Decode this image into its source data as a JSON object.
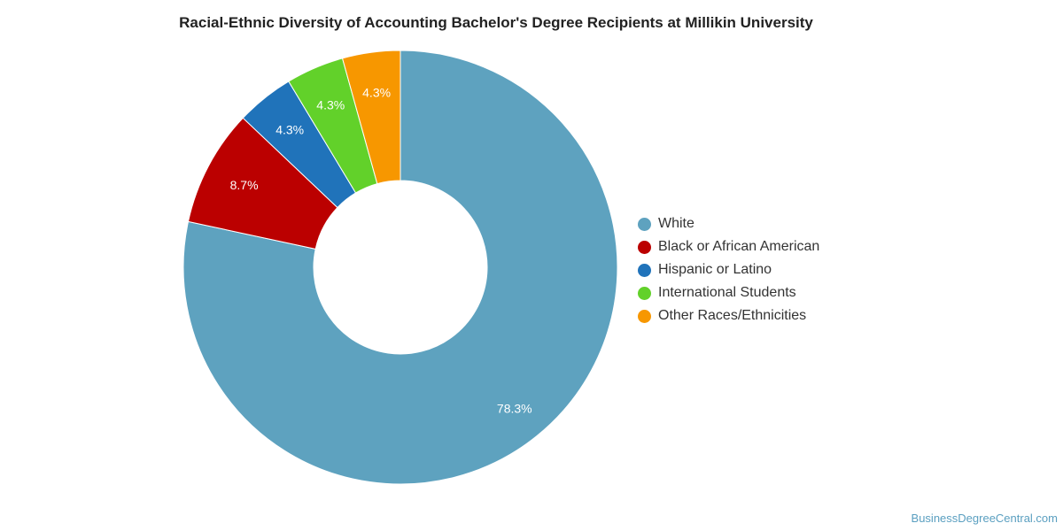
{
  "chart_data": {
    "type": "pie",
    "title": "Racial-Ethnic Diversity of Accounting Bachelor's Degree Recipients at Millikin University",
    "categories": [
      "White",
      "Black or African American",
      "Hispanic or Latino",
      "International Students",
      "Other Races/Ethnicities"
    ],
    "values": [
      78.3,
      8.7,
      4.3,
      4.3,
      4.3
    ],
    "data_labels": [
      "78.3%",
      "8.7%",
      "4.3%",
      "4.3%",
      "4.3%"
    ],
    "colors": [
      "#5ea2bf",
      "#bb0000",
      "#2073ba",
      "#62d12a",
      "#f79700"
    ],
    "donut": true,
    "legend_position": "right"
  },
  "credit": "BusinessDegreeCentral.com"
}
